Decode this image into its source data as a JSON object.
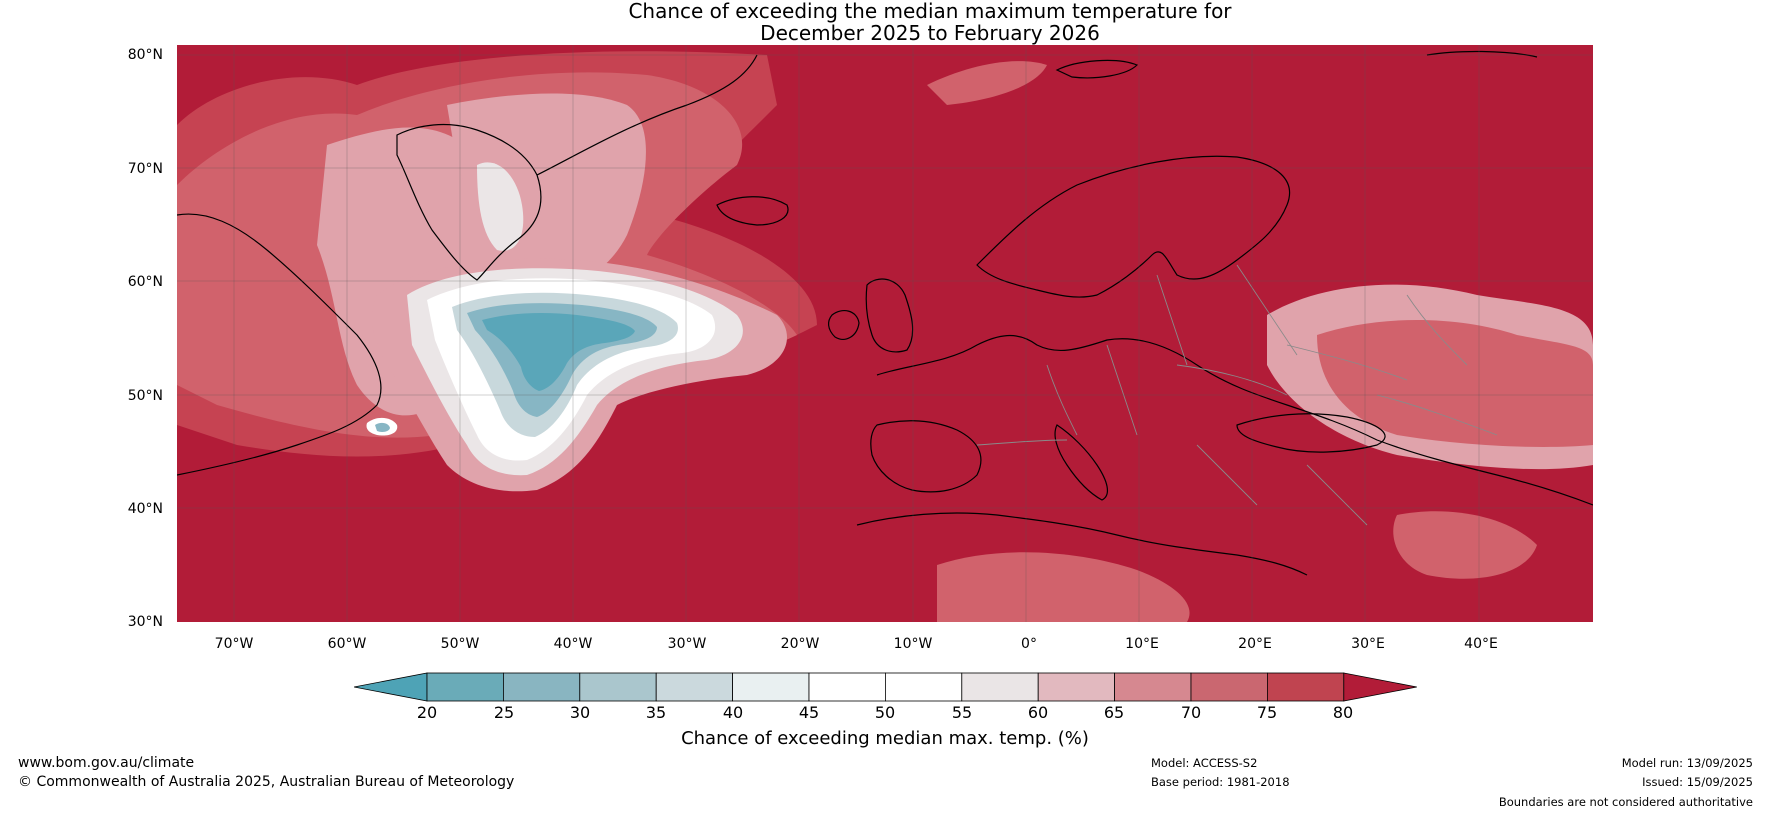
{
  "title": {
    "line1": "Chance of exceeding the median maximum temperature for",
    "line2": "December 2025 to February 2026"
  },
  "map": {
    "lat_labels": [
      "80°N",
      "70°N",
      "60°N",
      "50°N",
      "40°N",
      "30°N"
    ],
    "lon_labels": [
      "70°W",
      "60°W",
      "50°W",
      "40°W",
      "30°W",
      "20°W",
      "10°W",
      "0°",
      "10°E",
      "20°E",
      "30°E",
      "40°E"
    ],
    "lat_range": [
      30,
      80
    ],
    "lon_range": [
      -75,
      50
    ],
    "colors": {
      "ocean_high": "#b21c38",
      "hot_75": "#c64352",
      "hot_70": "#d1626c",
      "hot_65": "#e0a3ab",
      "neutral_60": "#ebe6e7",
      "neutral_50": "#ffffff",
      "cool_40": "#c8d8dc",
      "cool_30": "#87b6c4",
      "cool_25": "#5aa6b9",
      "cool_20": "#4aa0b5"
    }
  },
  "colorbar": {
    "ticks": [
      "20",
      "25",
      "30",
      "35",
      "40",
      "45",
      "50",
      "55",
      "60",
      "65",
      "70",
      "75",
      "80"
    ],
    "colors": [
      "#4ea3b6",
      "#6aabb8",
      "#89b5c1",
      "#aac6cd",
      "#cbd9dd",
      "#e9f0f1",
      "#ffffff",
      "#ffffff",
      "#eae5e6",
      "#e2b9bf",
      "#d68890",
      "#ca6770",
      "#c04450",
      "#b21c38"
    ],
    "label": "Chance of exceeding median max. temp. (%)"
  },
  "footer": {
    "website": "www.bom.gov.au/climate",
    "copyright": "© Commonwealth of Australia 2025, Australian Bureau of Meteorology",
    "model": "Model: ACCESS-S2",
    "base_period": "Base period: 1981-2018",
    "model_run": "Model run: 13/09/2025",
    "issued": "Issued: 15/09/2025",
    "disclaimer": "Boundaries are not considered authoritative"
  }
}
